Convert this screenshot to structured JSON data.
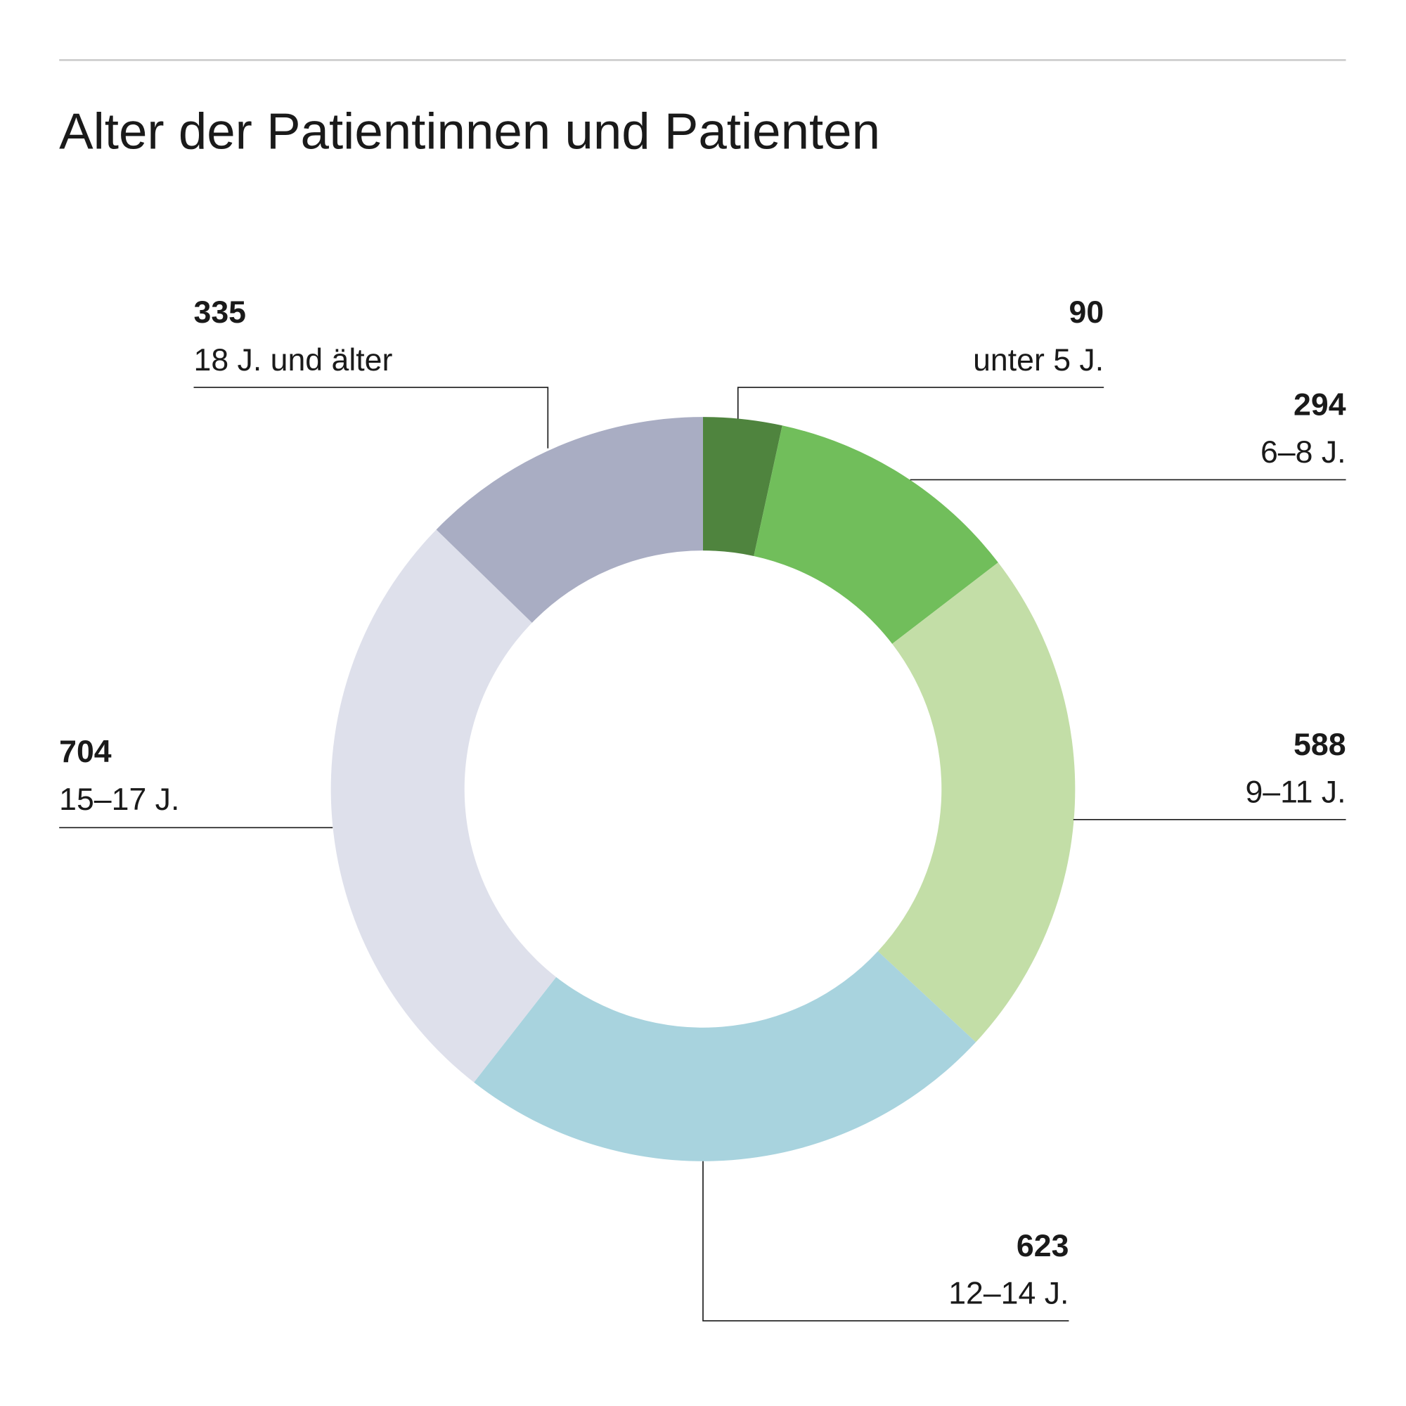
{
  "chart_data": {
    "type": "pie",
    "donut": true,
    "title": "Alter der Patientinnen und Patienten",
    "start": "top",
    "direction": "clockwise",
    "slices": [
      {
        "label": "unter 5 J.",
        "value": 90,
        "color": "#4f843e"
      },
      {
        "label": "6–8 J.",
        "value": 294,
        "color": "#71be5b"
      },
      {
        "label": "9–11 J.",
        "value": 588,
        "color": "#c3dea7"
      },
      {
        "label": "12–14 J.",
        "value": 623,
        "color": "#a8d3de"
      },
      {
        "label": "15–17 J.",
        "value": 704,
        "color": "#dee0eb"
      },
      {
        "label": "18 J. und älter",
        "value": 335,
        "color": "#a9adc3"
      }
    ]
  }
}
